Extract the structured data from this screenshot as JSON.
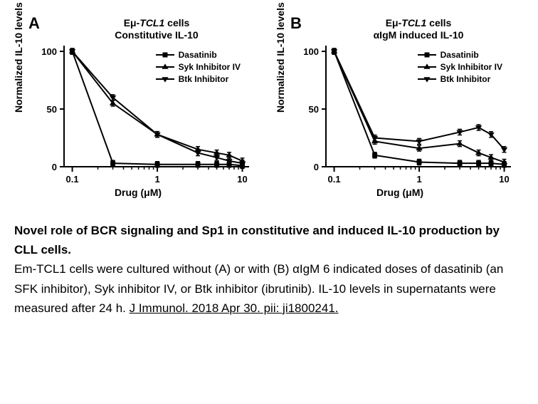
{
  "charts": [
    {
      "panel_label": "A",
      "title_line1": "Eμ-<i>TCL1</i> cells",
      "title_line2": "Constitutive IL-10",
      "y_label": "Normalized IL-10 levels",
      "x_label": "Drug (μM)",
      "x_scale": "log",
      "x_domain": [
        0.08,
        12
      ],
      "y_domain": [
        0,
        105
      ],
      "y_ticks": [
        0,
        50,
        100
      ],
      "x_ticks_major": [
        0.1,
        1,
        10
      ],
      "series": [
        {
          "name": "Dasatinib",
          "marker": "square",
          "points": [
            [
              0.1,
              100
            ],
            [
              0.3,
              3
            ],
            [
              1,
              2
            ],
            [
              3,
              2
            ],
            [
              5,
              2
            ],
            [
              7,
              2
            ],
            [
              10,
              1
            ]
          ]
        },
        {
          "name": "Syk Inhibitor IV",
          "marker": "triangle-up",
          "points": [
            [
              0.1,
              100
            ],
            [
              0.3,
              55
            ],
            [
              1,
              28
            ],
            [
              3,
              15
            ],
            [
              5,
              12
            ],
            [
              7,
              10
            ],
            [
              10,
              5
            ]
          ]
        },
        {
          "name": "Btk Inhibitor",
          "marker": "triangle-down",
          "points": [
            [
              0.1,
              100
            ],
            [
              0.3,
              60
            ],
            [
              1,
              28
            ],
            [
              3,
              12
            ],
            [
              5,
              8
            ],
            [
              7,
              5
            ],
            [
              10,
              3
            ]
          ]
        }
      ],
      "line_color": "#000000",
      "line_width": 2,
      "axis_color": "#000000"
    },
    {
      "panel_label": "B",
      "title_line1": "Eμ-<i>TCL1</i> cells",
      "title_line2": "αIgM induced IL-10",
      "y_label": "Normalized IL-10 levels",
      "x_label": "Drug (μM)",
      "x_scale": "log",
      "x_domain": [
        0.08,
        12
      ],
      "y_domain": [
        0,
        105
      ],
      "y_ticks": [
        0,
        50,
        100
      ],
      "x_ticks_major": [
        0.1,
        1,
        10
      ],
      "series": [
        {
          "name": "Dasatinib",
          "marker": "square",
          "points": [
            [
              0.1,
              100
            ],
            [
              0.3,
              10
            ],
            [
              1,
              4
            ],
            [
              3,
              3
            ],
            [
              5,
              3
            ],
            [
              7,
              3
            ],
            [
              10,
              2
            ]
          ]
        },
        {
          "name": "Syk Inhibitor IV",
          "marker": "triangle-up",
          "points": [
            [
              0.1,
              100
            ],
            [
              0.3,
              22
            ],
            [
              1,
              16
            ],
            [
              3,
              20
            ],
            [
              5,
              12
            ],
            [
              7,
              8
            ],
            [
              10,
              4
            ]
          ]
        },
        {
          "name": "Btk Inhibitor",
          "marker": "triangle-down",
          "points": [
            [
              0.1,
              100
            ],
            [
              0.3,
              25
            ],
            [
              1,
              22
            ],
            [
              3,
              30
            ],
            [
              5,
              34
            ],
            [
              7,
              28
            ],
            [
              10,
              15
            ]
          ]
        }
      ],
      "line_color": "#000000",
      "line_width": 2,
      "axis_color": "#000000"
    }
  ],
  "legend_items": [
    {
      "label": "Dasatinib",
      "marker": "square"
    },
    {
      "label": "Syk Inhibitor IV",
      "marker": "triangle-up"
    },
    {
      "label": "Btk Inhibitor",
      "marker": "triangle-down"
    }
  ],
  "caption": {
    "title": "Novel role of BCR signaling and Sp1 in constitutive and induced IL-10 production by CLL cells.",
    "body": "Em-TCL1 cells were cultured without (A) or with (B) αIgM 6 indicated doses of dasatinib (an SFK inhibitor), Syk inhibitor IV, or Btk inhibitor (ibrutinib). IL-10 levels in supernatants were measured after 24 h. ",
    "reference": "J Immunol. 2018 Apr 30. pii: ji1800241."
  }
}
